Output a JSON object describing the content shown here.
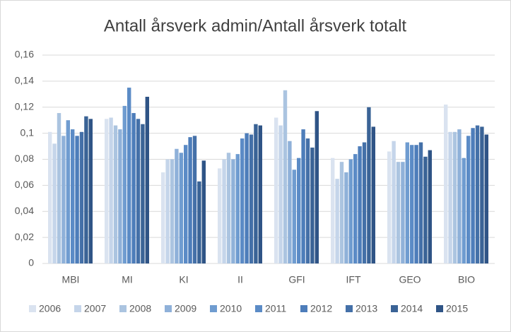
{
  "chart_data": {
    "type": "bar",
    "title": "Antall årsverk admin/Antall årsverk totalt",
    "categories": [
      "MBI",
      "MI",
      "KI",
      "II",
      "GFI",
      "IFT",
      "GEO",
      "BIO"
    ],
    "series": [
      {
        "name": "2006",
        "color": "#dae3f0",
        "values": [
          0.101,
          0.111,
          0.07,
          0.073,
          0.112,
          0.081,
          0.086,
          0.122
        ]
      },
      {
        "name": "2007",
        "color": "#c5d5ea",
        "values": [
          0.092,
          0.112,
          0.08,
          0.08,
          0.106,
          0.065,
          0.094,
          0.101
        ]
      },
      {
        "name": "2008",
        "color": "#abc4e0",
        "values": [
          0.1155,
          0.106,
          0.08,
          0.085,
          0.133,
          0.078,
          0.078,
          0.101
        ]
      },
      {
        "name": "2009",
        "color": "#8fb1d9",
        "values": [
          0.098,
          0.103,
          0.088,
          0.08,
          0.094,
          0.07,
          0.078,
          0.103
        ]
      },
      {
        "name": "2010",
        "color": "#6f9cd0",
        "values": [
          0.11,
          0.121,
          0.085,
          0.084,
          0.072,
          0.08,
          0.093,
          0.081
        ]
      },
      {
        "name": "2011",
        "color": "#5b8bc6",
        "values": [
          0.103,
          0.135,
          0.091,
          0.096,
          0.081,
          0.084,
          0.091,
          0.098
        ]
      },
      {
        "name": "2012",
        "color": "#4d7dba",
        "values": [
          0.098,
          0.1155,
          0.097,
          0.1,
          0.103,
          0.09,
          0.091,
          0.104
        ]
      },
      {
        "name": "2013",
        "color": "#4470a8",
        "values": [
          0.101,
          0.111,
          0.098,
          0.099,
          0.096,
          0.093,
          0.093,
          0.106
        ]
      },
      {
        "name": "2014",
        "color": "#3a6396",
        "values": [
          0.113,
          0.107,
          0.063,
          0.107,
          0.089,
          0.12,
          0.082,
          0.105
        ]
      },
      {
        "name": "2015",
        "color": "#2f5486",
        "values": [
          0.111,
          0.128,
          0.079,
          0.106,
          0.117,
          0.105,
          0.087,
          0.099
        ]
      }
    ],
    "ylim": [
      0,
      0.16
    ],
    "yticks": [
      0,
      {
        "value": 0.02,
        "label": "0,02"
      },
      {
        "value": 0.04,
        "label": "0,04"
      },
      {
        "value": 0.06,
        "label": "0,06"
      },
      {
        "value": 0.08,
        "label": "0,08"
      },
      {
        "value": 0.1,
        "label": "0,1"
      },
      {
        "value": 0.12,
        "label": "0,12"
      },
      {
        "value": 0.14,
        "label": "0,14"
      },
      {
        "value": 0.16,
        "label": "0,16"
      }
    ],
    "grid": true,
    "legend": "bottom"
  }
}
